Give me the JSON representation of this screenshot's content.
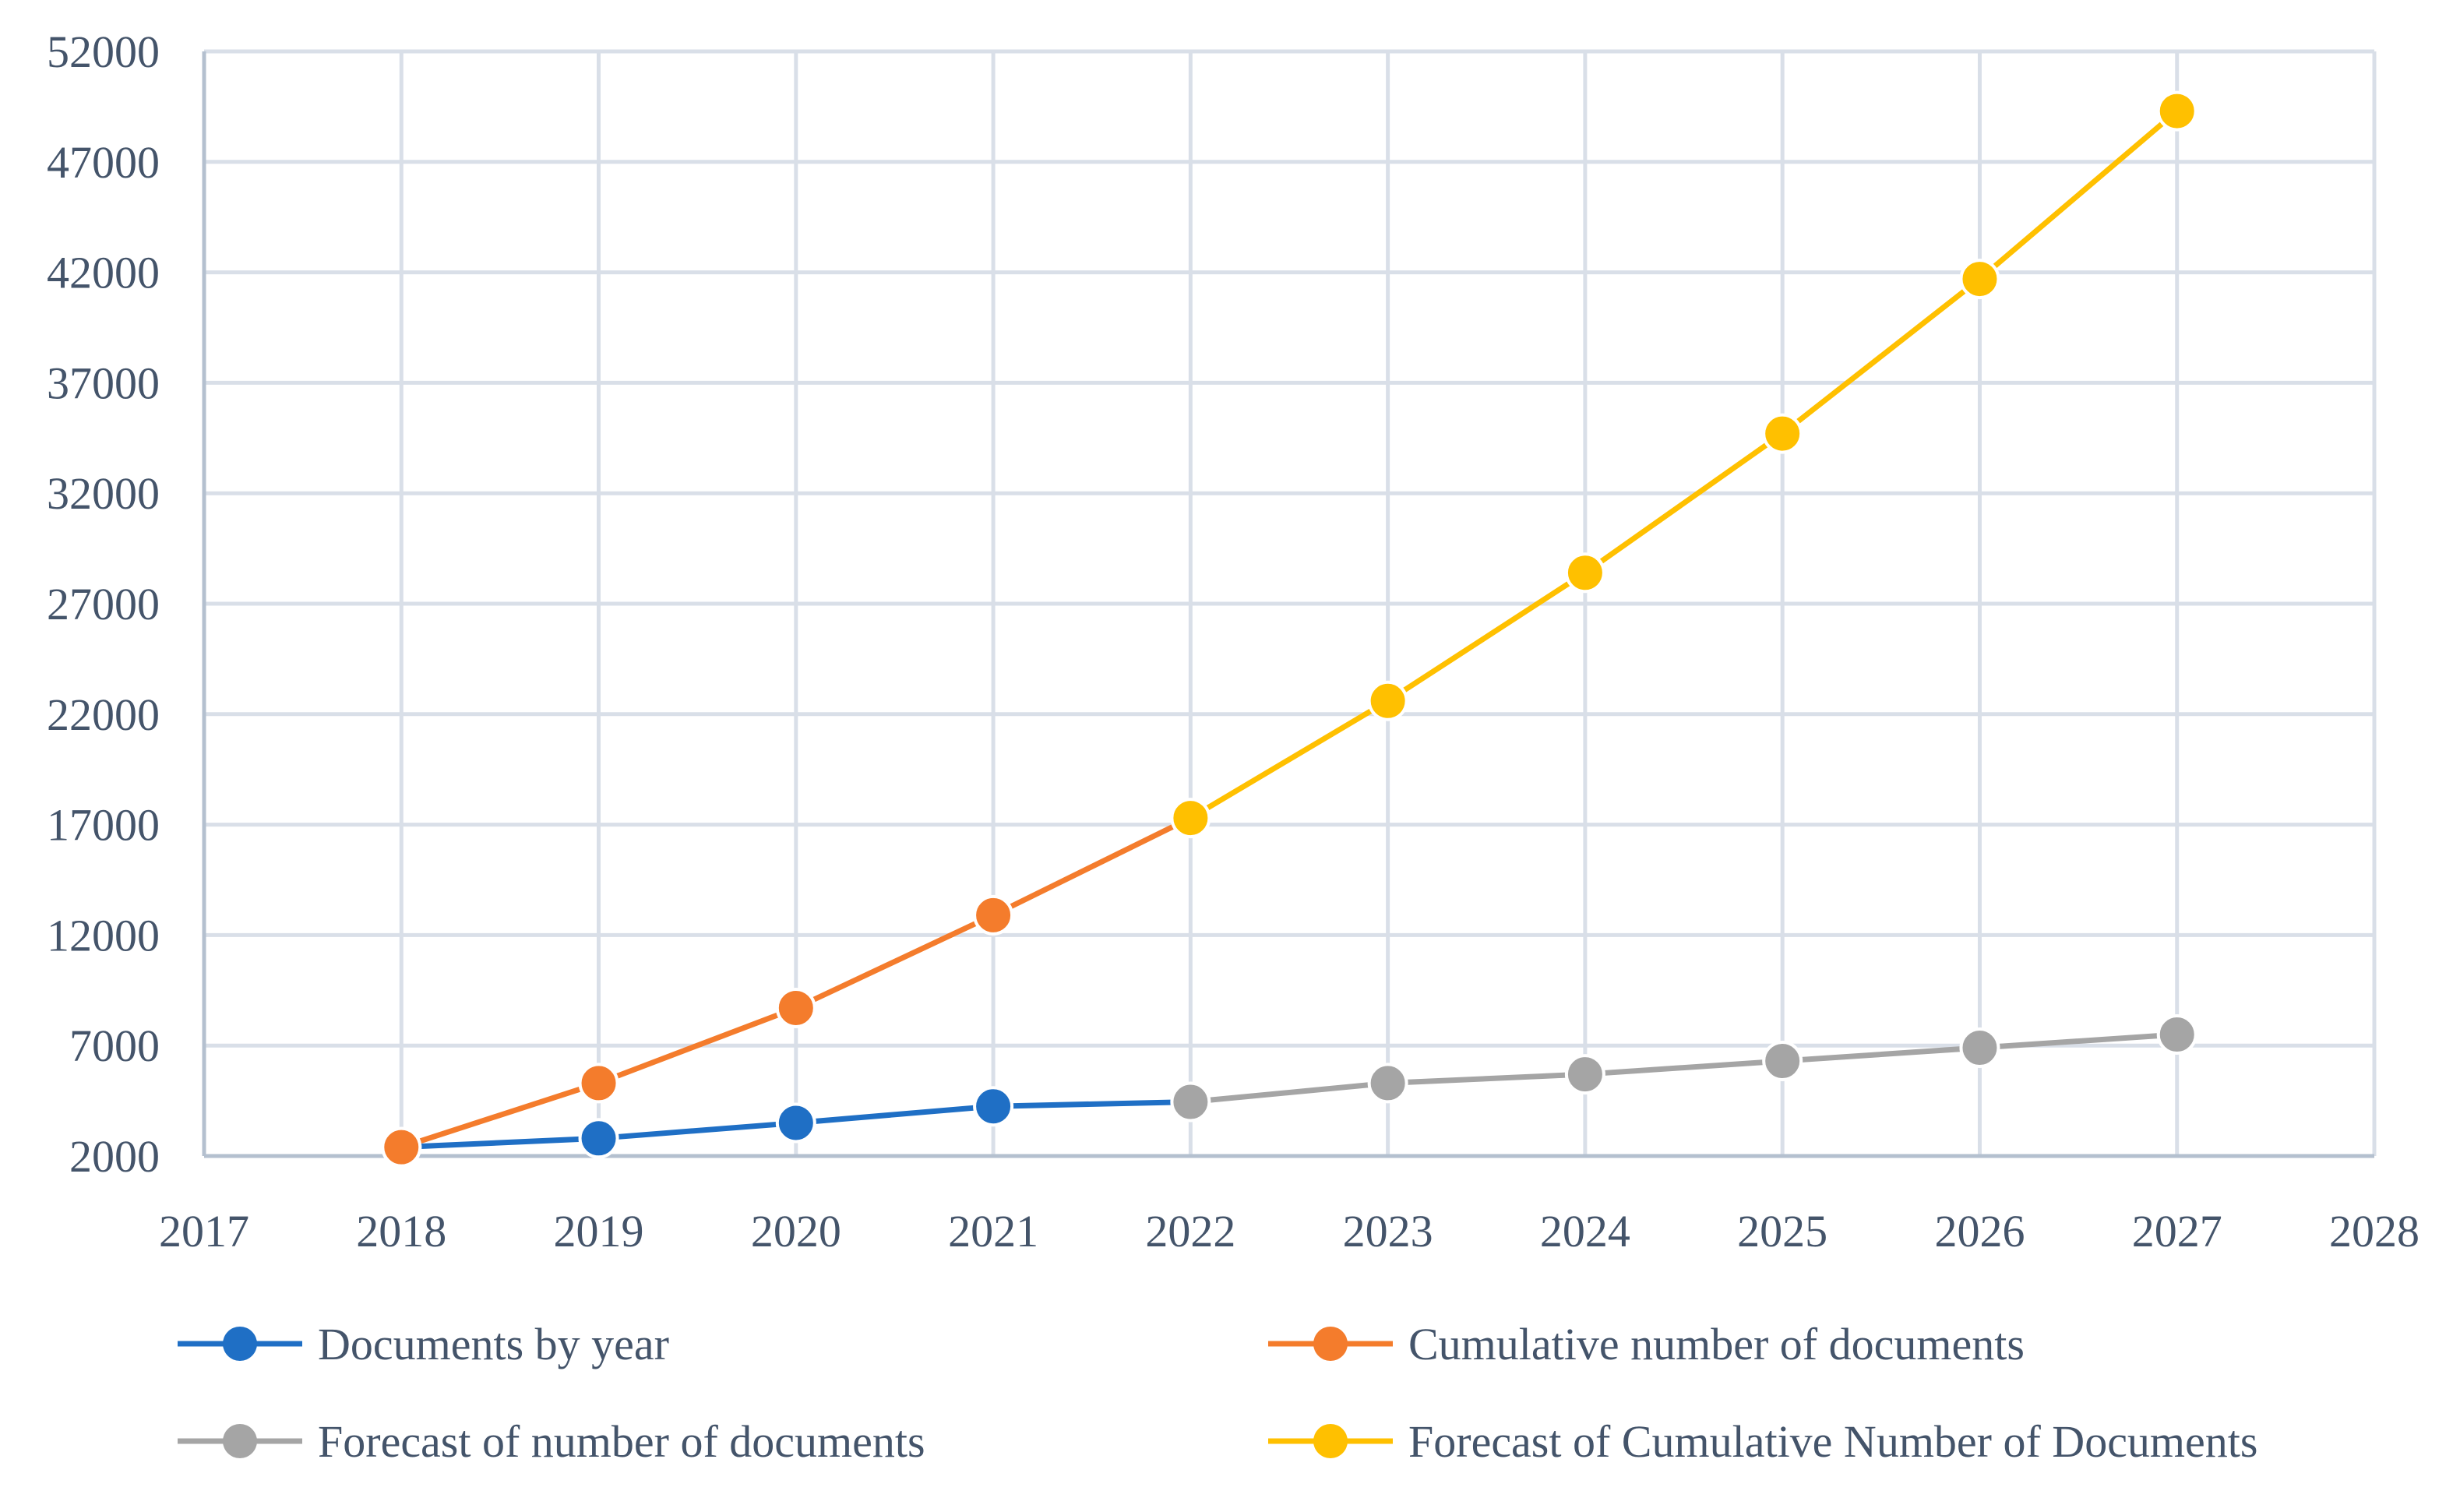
{
  "chart_data": {
    "type": "line",
    "title": "",
    "xlabel": "",
    "ylabel": "",
    "xlim": [
      2017,
      2028
    ],
    "ylim": [
      2000,
      52000
    ],
    "x_ticks": [
      2017,
      2018,
      2019,
      2020,
      2021,
      2022,
      2023,
      2024,
      2025,
      2026,
      2027,
      2028
    ],
    "y_ticks": [
      2000,
      7000,
      12000,
      17000,
      22000,
      27000,
      32000,
      37000,
      42000,
      47000,
      52000
    ],
    "grid": true,
    "legend_position": "bottom",
    "series": [
      {
        "name": "Documents by year",
        "color": "#1f6fc5",
        "x": [
          2018,
          2019,
          2020,
          2021,
          2022
        ],
        "y": [
          2400,
          2800,
          3500,
          4250,
          4450
        ],
        "marker_count": 4
      },
      {
        "name": "Cumulative number of documents",
        "color": "#f47c2c",
        "x": [
          2018,
          2019,
          2020,
          2021,
          2022
        ],
        "y": [
          2400,
          5300,
          8700,
          12900,
          17300
        ],
        "marker_count": 4
      },
      {
        "name": "Forecast of number of documents",
        "color": "#a5a5a5",
        "x": [
          2022,
          2023,
          2024,
          2025,
          2026,
          2027
        ],
        "y": [
          4450,
          5300,
          5700,
          6300,
          6900,
          7500
        ],
        "marker_count": 6
      },
      {
        "name": "Forecast of Cumulative Number of Documents",
        "color": "#ffc000",
        "x": [
          2022,
          2023,
          2024,
          2025,
          2026,
          2027
        ],
        "y": [
          17300,
          22600,
          28400,
          34700,
          41700,
          49300
        ],
        "marker_count": 6
      }
    ]
  },
  "colors": {
    "grid": "#d9dfe8",
    "axis": "#b4c0cf",
    "text": "#44546a"
  }
}
